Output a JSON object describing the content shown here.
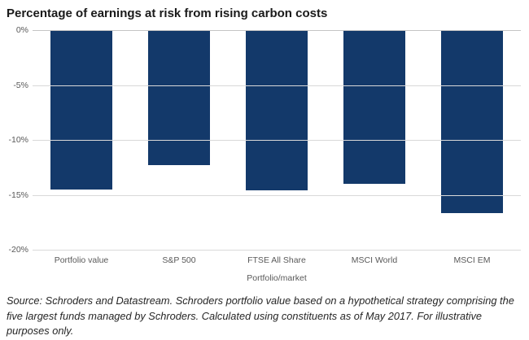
{
  "chart_data": {
    "type": "bar",
    "title": "Percentage of earnings at risk from rising carbon costs",
    "categories": [
      "Portfolio value",
      "S&P 500",
      "FTSE All Share",
      "MSCI World",
      "MSCI EM"
    ],
    "values": [
      -14.5,
      -12.3,
      -14.6,
      -14.0,
      -16.7
    ],
    "xlabel": "Portfolio/market",
    "ylabel": "",
    "ylim": [
      -20,
      0
    ],
    "yticks": [
      {
        "label": "0%",
        "value": 0
      },
      {
        "label": "-5%",
        "value": -5
      },
      {
        "label": "-10%",
        "value": -10
      },
      {
        "label": "-15%",
        "value": -15
      },
      {
        "label": "-20%",
        "value": -20
      }
    ],
    "grid": true,
    "legend": "none",
    "bar_color": "#13396a"
  },
  "source_note": "Source: Schroders and Datastream. Schroders portfolio value based on a hypothetical strategy comprising the five largest funds managed by Schroders. Calculated using constituents as of May 2017. For illustrative purposes only."
}
